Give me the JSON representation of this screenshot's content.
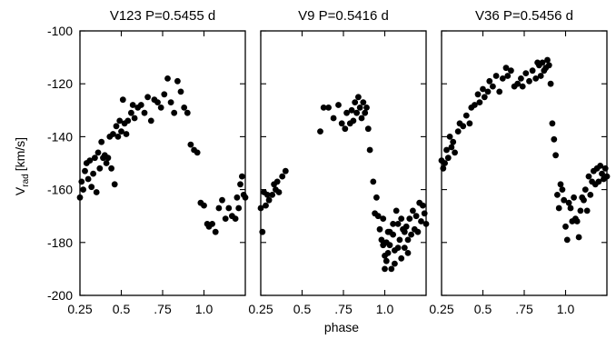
{
  "chart_data": {
    "type": "scatter",
    "ylabel_main": "V",
    "ylabel_sub": "rad",
    "ylabel_unit": "[km/s]",
    "xlabel": "phase",
    "ylim": [
      -200,
      -100
    ],
    "xlim": [
      0.25,
      1.25
    ],
    "y_ticks": [
      -100,
      -120,
      -140,
      -160,
      -180,
      -200
    ],
    "x_ticks": [
      "0.25",
      "0.5",
      ".75",
      "1.0"
    ],
    "x_tick_values": [
      0.25,
      0.5,
      0.75,
      1.0
    ],
    "panels": [
      {
        "title": "V123  P=0.5455 d",
        "points": [
          [
            0.25,
            -163
          ],
          [
            0.26,
            -157
          ],
          [
            0.27,
            -160
          ],
          [
            0.28,
            -153
          ],
          [
            0.29,
            -150
          ],
          [
            0.3,
            -156
          ],
          [
            0.31,
            -149
          ],
          [
            0.32,
            -159
          ],
          [
            0.33,
            -154
          ],
          [
            0.34,
            -148
          ],
          [
            0.35,
            -161
          ],
          [
            0.36,
            -146
          ],
          [
            0.37,
            -152
          ],
          [
            0.38,
            -142
          ],
          [
            0.39,
            -148
          ],
          [
            0.4,
            -147
          ],
          [
            0.41,
            -150
          ],
          [
            0.42,
            -148
          ],
          [
            0.43,
            -140
          ],
          [
            0.44,
            -152
          ],
          [
            0.45,
            -139
          ],
          [
            0.46,
            -158
          ],
          [
            0.47,
            -136
          ],
          [
            0.48,
            -140
          ],
          [
            0.49,
            -134
          ],
          [
            0.5,
            -138
          ],
          [
            0.51,
            -126
          ],
          [
            0.52,
            -135
          ],
          [
            0.53,
            -139
          ],
          [
            0.54,
            -134
          ],
          [
            0.56,
            -131
          ],
          [
            0.57,
            -128
          ],
          [
            0.58,
            -133
          ],
          [
            0.6,
            -129
          ],
          [
            0.62,
            -128
          ],
          [
            0.64,
            -131
          ],
          [
            0.66,
            -125
          ],
          [
            0.68,
            -134
          ],
          [
            0.7,
            -126
          ],
          [
            0.72,
            -127
          ],
          [
            0.74,
            -129
          ],
          [
            0.76,
            -124
          ],
          [
            0.78,
            -118
          ],
          [
            0.8,
            -127
          ],
          [
            0.82,
            -131
          ],
          [
            0.84,
            -119
          ],
          [
            0.86,
            -123
          ],
          [
            0.88,
            -129
          ],
          [
            0.9,
            -131
          ],
          [
            0.92,
            -143
          ],
          [
            0.94,
            -145
          ],
          [
            0.96,
            -146
          ],
          [
            0.98,
            -165
          ],
          [
            1.0,
            -166
          ],
          [
            1.02,
            -173
          ],
          [
            1.03,
            -174
          ],
          [
            1.05,
            -173
          ],
          [
            1.07,
            -176
          ],
          [
            1.09,
            -167
          ],
          [
            1.11,
            -164
          ],
          [
            1.13,
            -171
          ],
          [
            1.15,
            -167
          ],
          [
            1.17,
            -170
          ],
          [
            1.19,
            -171
          ],
          [
            1.2,
            -163
          ],
          [
            1.21,
            -167
          ],
          [
            1.22,
            -158
          ],
          [
            1.23,
            -155
          ],
          [
            1.24,
            -162
          ],
          [
            1.25,
            -163
          ]
        ]
      },
      {
        "title": "V9  P=0.5416 d",
        "points": [
          [
            0.25,
            -167
          ],
          [
            0.26,
            -176
          ],
          [
            0.27,
            -161
          ],
          [
            0.28,
            -166
          ],
          [
            0.29,
            -162
          ],
          [
            0.3,
            -164
          ],
          [
            0.32,
            -162
          ],
          [
            0.33,
            -158
          ],
          [
            0.34,
            -160
          ],
          [
            0.35,
            -157
          ],
          [
            0.36,
            -161
          ],
          [
            0.38,
            -155
          ],
          [
            0.4,
            -153
          ],
          [
            0.61,
            -138
          ],
          [
            0.63,
            -129
          ],
          [
            0.66,
            -129
          ],
          [
            0.69,
            -133
          ],
          [
            0.72,
            -128
          ],
          [
            0.74,
            -135
          ],
          [
            0.76,
            -137
          ],
          [
            0.77,
            -131
          ],
          [
            0.79,
            -135
          ],
          [
            0.8,
            -130
          ],
          [
            0.81,
            -134
          ],
          [
            0.82,
            -127
          ],
          [
            0.83,
            -131
          ],
          [
            0.84,
            -125
          ],
          [
            0.85,
            -129
          ],
          [
            0.86,
            -133
          ],
          [
            0.87,
            -127
          ],
          [
            0.88,
            -131
          ],
          [
            0.89,
            -129
          ],
          [
            0.9,
            -137
          ],
          [
            0.91,
            -145
          ],
          [
            0.93,
            -157
          ],
          [
            0.94,
            -169
          ],
          [
            0.95,
            -163
          ],
          [
            0.96,
            -170
          ],
          [
            0.97,
            -175
          ],
          [
            0.98,
            -179
          ],
          [
            0.99,
            -171
          ],
          [
            1.0,
            -185
          ],
          [
            1.01,
            -187
          ],
          [
            1.02,
            -176
          ],
          [
            1.03,
            -181
          ],
          [
            1.04,
            -190
          ],
          [
            1.05,
            -177
          ],
          [
            1.06,
            -183
          ],
          [
            1.07,
            -168
          ],
          [
            1.08,
            -173
          ],
          [
            1.09,
            -179
          ],
          [
            1.1,
            -186
          ],
          [
            1.11,
            -175
          ],
          [
            1.12,
            -182
          ],
          [
            1.13,
            -174
          ],
          [
            1.14,
            -179
          ],
          [
            1.15,
            -171
          ],
          [
            1.16,
            -177
          ],
          [
            1.17,
            -168
          ],
          [
            1.18,
            -175
          ],
          [
            1.19,
            -170
          ],
          [
            1.2,
            -176
          ],
          [
            1.21,
            -165
          ],
          [
            1.22,
            -172
          ],
          [
            1.23,
            -166
          ],
          [
            1.24,
            -169
          ],
          [
            1.25,
            -173
          ],
          [
            1.0,
            -190
          ],
          [
            1.02,
            -184
          ],
          [
            1.06,
            -188
          ],
          [
            1.08,
            -182
          ],
          [
            0.99,
            -181
          ],
          [
            1.01,
            -180
          ],
          [
            1.03,
            -176
          ],
          [
            1.05,
            -173
          ],
          [
            1.1,
            -171
          ],
          [
            1.12,
            -176
          ],
          [
            1.14,
            -184
          ]
        ]
      },
      {
        "title": "V36  P=0.5456 d",
        "points": [
          [
            0.25,
            -149
          ],
          [
            0.26,
            -152
          ],
          [
            0.27,
            -150
          ],
          [
            0.28,
            -145
          ],
          [
            0.29,
            -148
          ],
          [
            0.3,
            -140
          ],
          [
            0.31,
            -144
          ],
          [
            0.32,
            -142
          ],
          [
            0.33,
            -146
          ],
          [
            0.35,
            -138
          ],
          [
            0.36,
            -135
          ],
          [
            0.38,
            -136
          ],
          [
            0.4,
            -132
          ],
          [
            0.42,
            -135
          ],
          [
            0.43,
            -129
          ],
          [
            0.45,
            -128
          ],
          [
            0.47,
            -124
          ],
          [
            0.48,
            -127
          ],
          [
            0.5,
            -122
          ],
          [
            0.51,
            -125
          ],
          [
            0.53,
            -123
          ],
          [
            0.54,
            -119
          ],
          [
            0.56,
            -121
          ],
          [
            0.58,
            -117
          ],
          [
            0.6,
            -123
          ],
          [
            0.62,
            -118
          ],
          [
            0.64,
            -114
          ],
          [
            0.65,
            -117
          ],
          [
            0.67,
            -115
          ],
          [
            0.69,
            -121
          ],
          [
            0.71,
            -120
          ],
          [
            0.73,
            -118
          ],
          [
            0.74,
            -121
          ],
          [
            0.76,
            -116
          ],
          [
            0.78,
            -119
          ],
          [
            0.8,
            -115
          ],
          [
            0.82,
            -118
          ],
          [
            0.83,
            -112
          ],
          [
            0.84,
            -113
          ],
          [
            0.85,
            -117
          ],
          [
            0.86,
            -112
          ],
          [
            0.87,
            -115
          ],
          [
            0.88,
            -114
          ],
          [
            0.89,
            -111
          ],
          [
            0.9,
            -113
          ],
          [
            0.91,
            -120
          ],
          [
            0.92,
            -135
          ],
          [
            0.93,
            -141
          ],
          [
            0.94,
            -147
          ],
          [
            0.95,
            -162
          ],
          [
            0.96,
            -167
          ],
          [
            0.97,
            -158
          ],
          [
            0.98,
            -160
          ],
          [
            0.99,
            -164
          ],
          [
            1.0,
            -174
          ],
          [
            1.01,
            -179
          ],
          [
            1.02,
            -165
          ],
          [
            1.03,
            -167
          ],
          [
            1.04,
            -172
          ],
          [
            1.05,
            -163
          ],
          [
            1.06,
            -171
          ],
          [
            1.07,
            -172
          ],
          [
            1.08,
            -178
          ],
          [
            1.09,
            -168
          ],
          [
            1.1,
            -163
          ],
          [
            1.11,
            -164
          ],
          [
            1.12,
            -160
          ],
          [
            1.13,
            -168
          ],
          [
            1.14,
            -155
          ],
          [
            1.15,
            -162
          ],
          [
            1.16,
            -157
          ],
          [
            1.17,
            -153
          ],
          [
            1.18,
            -158
          ],
          [
            1.19,
            -152
          ],
          [
            1.2,
            -157
          ],
          [
            1.21,
            -151
          ],
          [
            1.22,
            -154
          ],
          [
            1.23,
            -156
          ],
          [
            1.24,
            -152
          ],
          [
            1.25,
            -155
          ]
        ]
      }
    ]
  }
}
